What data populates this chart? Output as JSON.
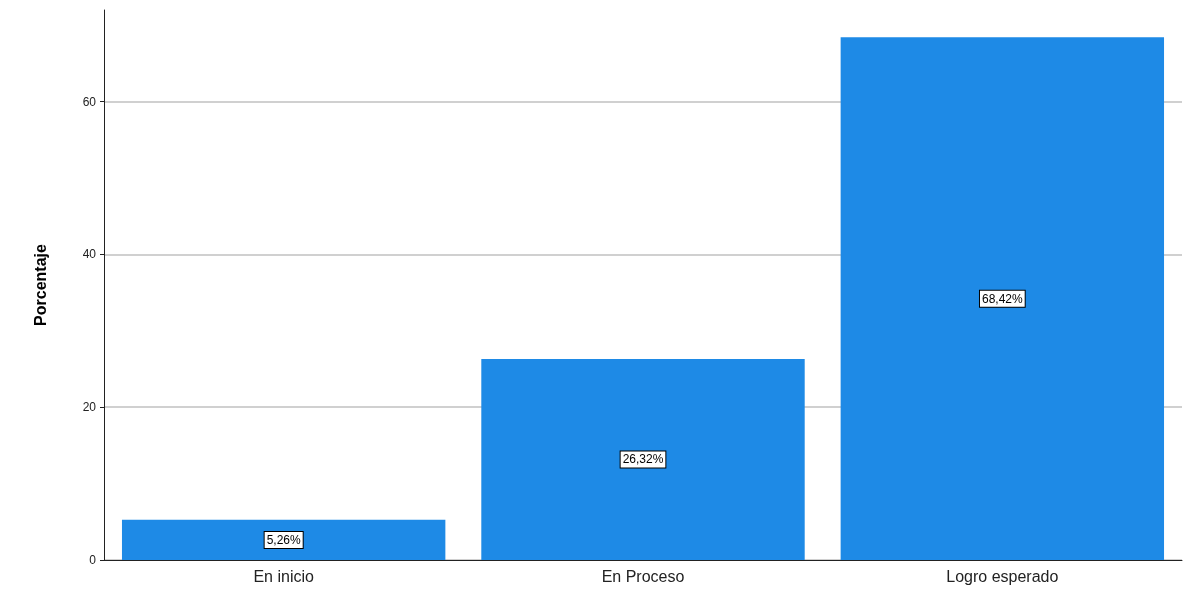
{
  "chart_data": {
    "type": "bar",
    "ylabel": "Porcentaje",
    "categories": [
      "En inicio",
      "En Proceso",
      "Logro esperado"
    ],
    "values": [
      5.26,
      26.32,
      68.42
    ],
    "color": "#1e8ae6",
    "value_labels": [
      "5,26%",
      "26,32%",
      "68,42%"
    ],
    "ylim": [
      0,
      72
    ],
    "yticks": [
      0,
      20,
      40,
      60
    ],
    "grid": "y"
  }
}
